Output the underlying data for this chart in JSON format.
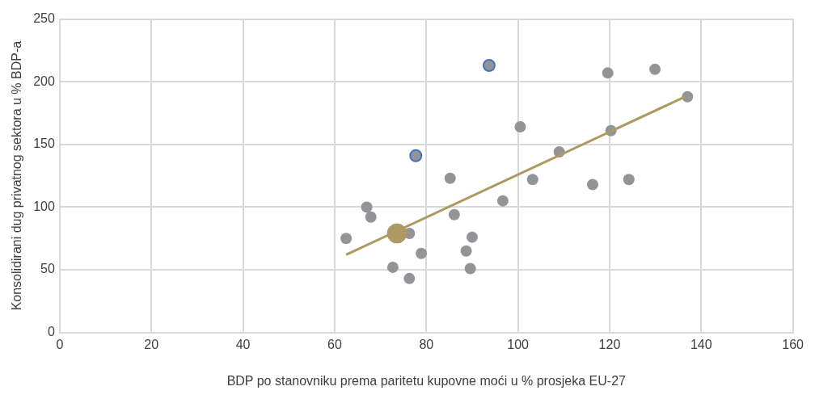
{
  "chart_data": {
    "type": "scatter",
    "xlabel": "BDP po stanovniku prema paritetu kupovne moći u % prosjeka EU-27",
    "ylabel": "Konsolidirani dug privatnog sektora u % BDP-a",
    "xlim": [
      0,
      160
    ],
    "xticks": [
      0,
      20,
      40,
      60,
      80,
      100,
      120,
      140,
      160
    ],
    "ylim": [
      0,
      250
    ],
    "yticks": [
      0,
      50,
      100,
      150,
      200,
      250
    ],
    "grid": true,
    "marker": "circle",
    "series": [
      {
        "color": "#939497",
        "x": [
          62.5,
          67.0,
          67.9,
          72.7,
          76.3,
          76.3,
          78.9,
          85.2,
          86.1,
          90.0,
          88.7,
          89.6,
          96.7,
          103.2,
          109.0,
          116.3,
          120.3,
          119.6,
          124.2,
          129.9,
          137.0,
          100.5
        ],
        "values": [
          75,
          100,
          92,
          52,
          79,
          43,
          63,
          123,
          94,
          76,
          65,
          51,
          105,
          122,
          144,
          118,
          161,
          207,
          122,
          210,
          188,
          164
        ]
      },
      {
        "color": "#4472c4",
        "x": [
          77.7,
          93.7
        ],
        "values": [
          141,
          213
        ]
      },
      {
        "type": "line",
        "color": "#ae9962",
        "x": [
          62.5,
          137.0
        ],
        "values": [
          62,
          189
        ],
        "marker": "none"
      },
      {
        "type": "bubble",
        "color": "#ae9962",
        "x": [
          73.6
        ],
        "values": [
          79
        ],
        "sizes": [
          1
        ]
      }
    ]
  }
}
